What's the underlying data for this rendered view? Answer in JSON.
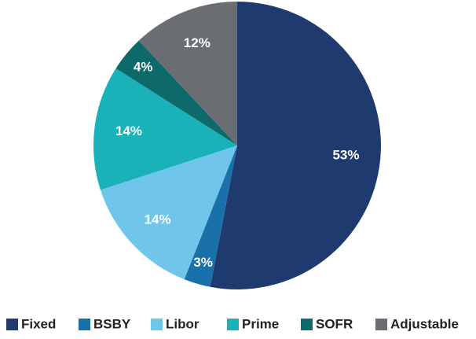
{
  "chart_data": {
    "type": "pie",
    "categories": [
      "Fixed",
      "BSBY",
      "Libor",
      "Prime",
      "SOFR",
      "Adjustable"
    ],
    "values": [
      53,
      3,
      14,
      14,
      4,
      12
    ],
    "value_labels": [
      "53%",
      "3%",
      "14%",
      "14%",
      "4%",
      "12%"
    ],
    "colors": [
      "#1f3a6e",
      "#1a70a8",
      "#6fc6ea",
      "#18b2b8",
      "#0e6a6a",
      "#6a6d71"
    ],
    "legend": "bottom"
  }
}
